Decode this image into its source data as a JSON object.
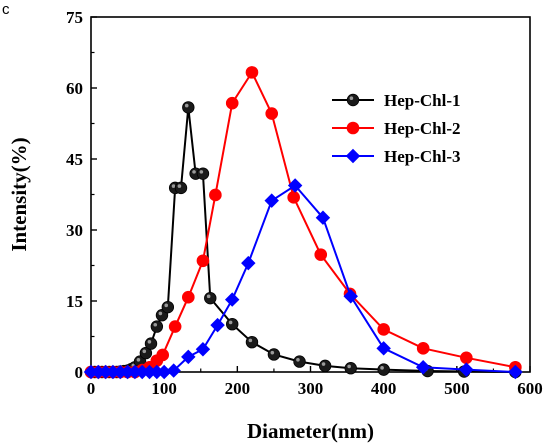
{
  "panel_label": "c",
  "chart_data": {
    "type": "line",
    "title": "",
    "xlabel": "Diameter(nm)",
    "ylabel": "Intensity(%)",
    "xlim": [
      0,
      600
    ],
    "ylim": [
      0,
      75
    ],
    "xticks": [
      0,
      100,
      200,
      300,
      400,
      500,
      600
    ],
    "yticks": [
      0,
      15,
      30,
      45,
      60,
      75
    ],
    "grid": false,
    "legend_position": "top-right",
    "series": [
      {
        "name": "Hep-Chl-1",
        "color": "#000000",
        "marker": "circle",
        "x": [
          0,
          5,
          10,
          15,
          20,
          25,
          30,
          35,
          40,
          45,
          50,
          55,
          60,
          67,
          75,
          82,
          90,
          97,
          105,
          115,
          123,
          133,
          143,
          153,
          163,
          193,
          220,
          250,
          285,
          320,
          355,
          400,
          460,
          510,
          580
        ],
        "y": [
          0,
          0,
          0,
          0,
          0,
          0,
          0,
          0,
          0.1,
          0.2,
          0.3,
          0.6,
          1.0,
          2.2,
          4.0,
          6.0,
          9.6,
          12.0,
          13.7,
          38.9,
          38.9,
          55.9,
          41.9,
          41.9,
          15.6,
          10.1,
          6.3,
          3.7,
          2.2,
          1.3,
          0.8,
          0.5,
          0.2,
          0.1,
          0
        ]
      },
      {
        "name": "Hep-Chl-2",
        "color": "#ff0000",
        "marker": "circle",
        "x": [
          0,
          10,
          20,
          30,
          40,
          50,
          60,
          70,
          80,
          90,
          98,
          115,
          133,
          153,
          170,
          193,
          220,
          247,
          277,
          314,
          354,
          400,
          454,
          513,
          580
        ],
        "y": [
          0,
          0,
          0,
          0,
          0,
          0,
          0,
          0.4,
          1.0,
          2.4,
          3.6,
          9.6,
          15.8,
          23.5,
          37.4,
          56.8,
          63.3,
          54.6,
          36.9,
          24.8,
          16.5,
          9.0,
          5.0,
          3.0,
          1.0
        ]
      },
      {
        "name": "Hep-Chl-3",
        "color": "#0000ff",
        "marker": "diamond",
        "x": [
          0,
          10,
          20,
          30,
          40,
          50,
          60,
          70,
          80,
          90,
          100,
          113,
          133,
          153,
          173,
          193,
          215,
          247,
          279,
          317,
          355,
          400,
          454,
          513,
          580
        ],
        "y": [
          0,
          0,
          0,
          0,
          0,
          0,
          0,
          0,
          0,
          0,
          0,
          0.3,
          3.2,
          4.8,
          9.9,
          15.3,
          23.0,
          36.2,
          39.4,
          32.6,
          16.0,
          5.0,
          1.0,
          0.5,
          0
        ]
      }
    ]
  }
}
